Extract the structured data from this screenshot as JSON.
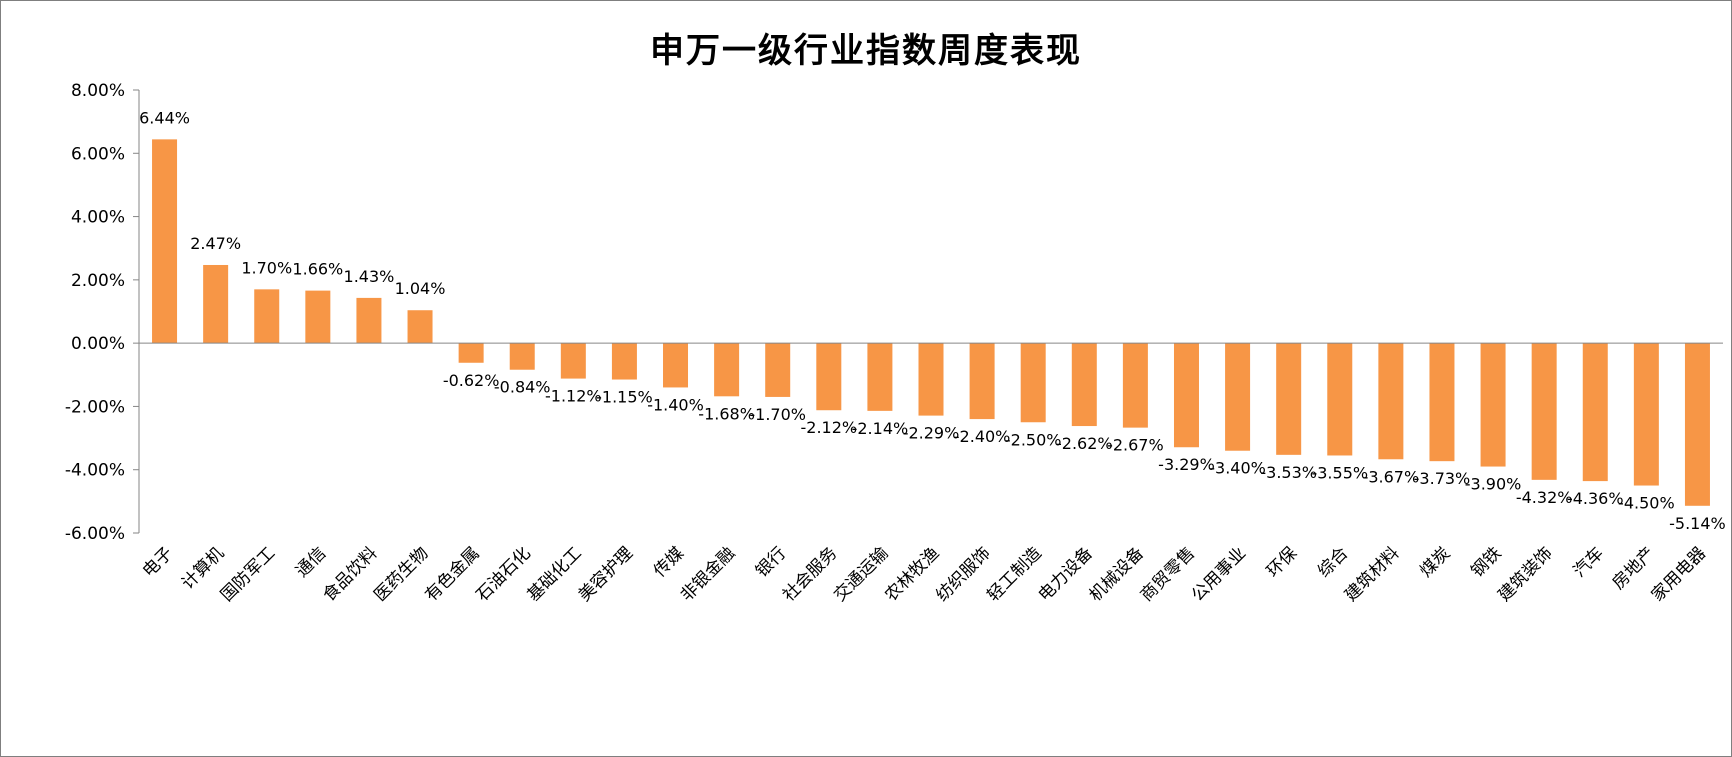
{
  "chart_data": {
    "type": "bar",
    "title": "申万一级行业指数周度表现",
    "xlabel": "",
    "ylabel": "",
    "ylim": [
      -0.06,
      0.08
    ],
    "yticks": [
      8,
      6,
      4,
      2,
      0,
      -2,
      -4,
      -6
    ],
    "ytick_labels": [
      "8.00%",
      "6.00%",
      "4.00%",
      "2.00%",
      "0.00%",
      "-2.00%",
      "-4.00%",
      "-6.00%"
    ],
    "grid": false,
    "legend": "none",
    "bar_color": "#F79646",
    "categories": [
      "电子",
      "计算机",
      "国防军工",
      "通信",
      "食品饮料",
      "医药生物",
      "有色金属",
      "石油石化",
      "基础化工",
      "美容护理",
      "传媒",
      "非银金融",
      "银行",
      "社会服务",
      "交通运输",
      "农林牧渔",
      "纺织服饰",
      "轻工制造",
      "电力设备",
      "机械设备",
      "商贸零售",
      "公用事业",
      "环保",
      "综合",
      "建筑材料",
      "煤炭",
      "钢铁",
      "建筑装饰",
      "汽车",
      "房地产",
      "家用电器"
    ],
    "values": [
      6.44,
      2.47,
      1.7,
      1.66,
      1.43,
      1.04,
      -0.62,
      -0.84,
      -1.12,
      -1.15,
      -1.4,
      -1.68,
      -1.7,
      -2.12,
      -2.14,
      -2.29,
      -2.4,
      -2.5,
      -2.62,
      -2.67,
      -3.29,
      -3.4,
      -3.53,
      -3.55,
      -3.67,
      -3.73,
      -3.9,
      -4.32,
      -4.36,
      -4.5,
      -5.14
    ],
    "value_labels": [
      "6.44%",
      "2.47%",
      "1.70%",
      "1.66%",
      "1.43%",
      "1.04%",
      "-0.62%",
      "-0.84%",
      "-1.12%",
      "-1.15%",
      "-1.40%",
      "-1.68%",
      "-1.70%",
      "-2.12%",
      "-2.14%",
      "-2.29%",
      "-2.40%",
      "-2.50%",
      "-2.62%",
      "-2.67%",
      "-3.29%",
      "-3.40%",
      "-3.53%",
      "-3.55%",
      "-3.67%",
      "-3.73%",
      "-3.90%",
      "-4.32%",
      "-4.36%",
      "-4.50%",
      "-5.14%"
    ]
  }
}
